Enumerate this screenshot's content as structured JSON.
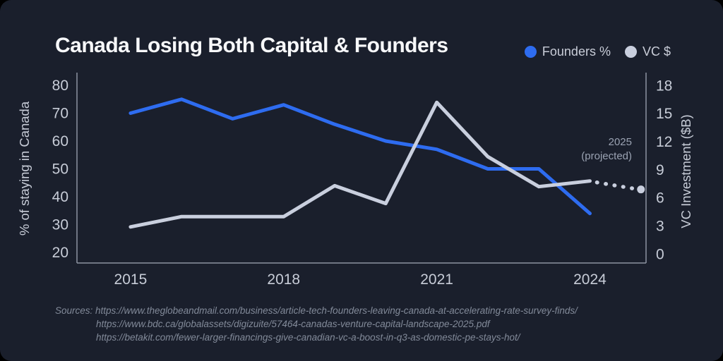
{
  "title": "Canada Losing Both Capital & Founders",
  "legend": [
    {
      "label": "Founders %",
      "color": "#2e6cf0"
    },
    {
      "label": "VC $",
      "color": "#c9cfde"
    }
  ],
  "annotation": {
    "line1": "2025",
    "line2": "(projected)"
  },
  "sources": {
    "display": [
      "Sources: https://www.theglobeandmail.com/business/article-tech-founders-leaving-canada-at-accelerating-rate-survey-finds/",
      "https://www.bdc.ca/globalassets/digizuite/57464-canadas-venture-capital-landscape-2025.pdf",
      "https://betakit.com/fewer-larger-financings-give-canadian-vc-a-boost-in-q3-as-domestic-pe-stays-hot/"
    ]
  },
  "colors": {
    "background": "#1a1f2c",
    "outer": "#000000",
    "title": "#f7f8fa",
    "founders_line": "#2e6cf0",
    "vc_line": "#c9cfde",
    "tick_text": "#c7ccd7",
    "axis_title": "#c7ccd7",
    "spine": "#8c93a2",
    "annotation": "#9aa2b2",
    "sources": "#828a99"
  },
  "chart_data": {
    "type": "line",
    "title": "Canada Losing Both Capital & Founders",
    "x": [
      2015,
      2016,
      2017,
      2018,
      2019,
      2020,
      2021,
      2022,
      2023,
      2024
    ],
    "x_axis": {
      "ticks": [
        "2015",
        "2018",
        "2021",
        "2024"
      ]
    },
    "left_axis": {
      "label": "% of staying in Canada",
      "ticks": [
        80,
        70,
        60,
        50,
        40,
        30,
        20
      ],
      "range": [
        20,
        80
      ]
    },
    "right_axis": {
      "label": "VC Investment ($B)",
      "ticks": [
        18,
        15,
        12,
        9,
        6,
        3,
        0
      ],
      "range": [
        0,
        18
      ]
    },
    "series": [
      {
        "name": "Founders %",
        "axis": "left",
        "color": "#2e6cf0",
        "style": "solid",
        "values": [
          70,
          75,
          68,
          73,
          66,
          60,
          57,
          50,
          50,
          34
        ]
      },
      {
        "name": "VC $",
        "axis": "right",
        "color": "#c9cfde",
        "style": "solid",
        "values": [
          2.9,
          4.0,
          4.0,
          4.0,
          7.3,
          5.4,
          16.2,
          10.4,
          7.2,
          7.8
        ],
        "projection": {
          "x": 2025,
          "value": 6.9,
          "style": "dotted",
          "marker": "dot"
        }
      }
    ],
    "legend_position": "top-right",
    "grid": false,
    "annotation": {
      "text": "2025 (projected)"
    }
  }
}
